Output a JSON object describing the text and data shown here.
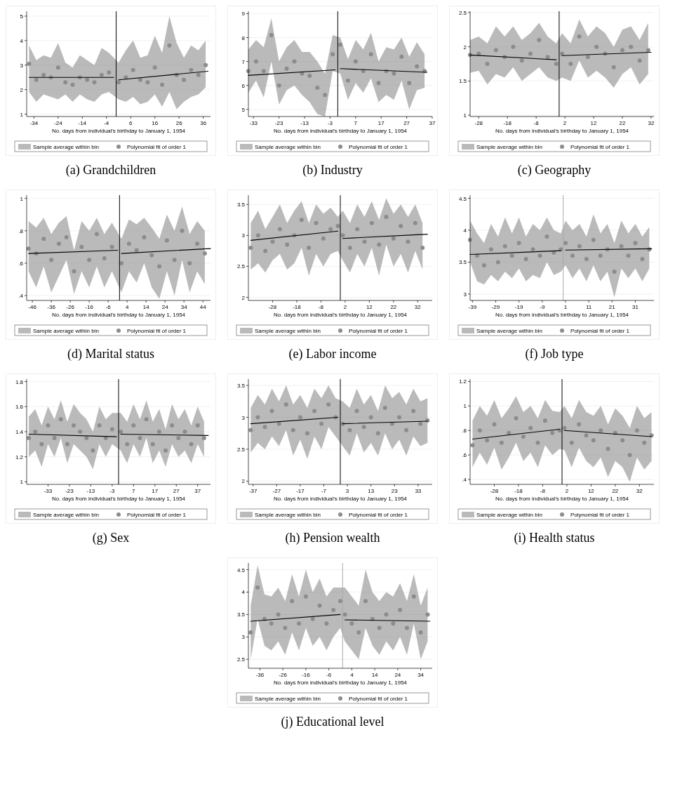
{
  "chart_data": [
    {
      "type": "scatter",
      "title": "(a) Grandchildren",
      "xlabel": "No. days from individual's birthday to January 1, 1954",
      "annotations": [
        "Sample average within bin"
      ],
      "xlim": [
        -37,
        39
      ],
      "xticks": [
        -34,
        -24,
        -14,
        -4,
        6,
        16,
        26,
        36
      ],
      "ylim": [
        0.9,
        5.2
      ],
      "yticks": [
        1,
        2,
        3,
        4,
        5
      ],
      "grid": "y",
      "legend": "bottom",
      "ref_lines": [
        {
          "axis": "x",
          "value": 0,
          "color": "#000000"
        }
      ],
      "x": [
        -36,
        -33,
        -30,
        -27,
        -24,
        -21,
        -18,
        -15,
        -12,
        -9,
        -6,
        -3,
        1,
        4,
        7,
        10,
        13,
        16,
        19,
        22,
        25,
        28,
        31,
        34,
        37
      ],
      "series": [
        {
          "name": "Polynomial fit of order 1",
          "color": "#8c8c8c",
          "values": [
            3.05,
            2.4,
            2.6,
            2.5,
            2.9,
            2.3,
            2.2,
            2.5,
            2.4,
            2.3,
            2.6,
            2.7,
            2.3,
            2.5,
            2.8,
            2.4,
            2.3,
            2.9,
            2.2,
            3.8,
            2.6,
            2.4,
            2.8,
            2.6,
            3.0
          ],
          "upper": [
            3.8,
            3.2,
            3.4,
            3.3,
            3.9,
            3.1,
            2.9,
            3.4,
            3.2,
            3.0,
            3.7,
            3.5,
            3.1,
            3.6,
            4.0,
            3.3,
            3.4,
            4.2,
            3.5,
            5.0,
            3.9,
            3.3,
            3.8,
            3.6,
            4.0
          ],
          "lower": [
            1.9,
            1.5,
            1.8,
            1.7,
            1.6,
            1.8,
            1.5,
            1.8,
            1.6,
            1.5,
            1.8,
            1.9,
            1.6,
            1.5,
            1.7,
            1.4,
            1.5,
            1.8,
            1.3,
            1.9,
            1.2,
            1.5,
            1.7,
            1.8,
            2.1
          ]
        },
        {
          "type": "line",
          "color": "#000000",
          "x": [
            -36,
            -1
          ],
          "values": [
            2.5,
            2.5
          ]
        },
        {
          "type": "line",
          "color": "#000000",
          "x": [
            1,
            38
          ],
          "values": [
            2.4,
            2.75
          ]
        }
      ]
    },
    {
      "type": "scatter",
      "title": "(b) Industry",
      "xlabel": "No. days from individual's birthday to January 1, 1954",
      "annotations": [
        "Sample average within bin"
      ],
      "xlim": [
        -35,
        37
      ],
      "xticks": [
        -33,
        -23,
        -13,
        -3,
        7,
        17,
        27,
        37
      ],
      "ylim": [
        4.7,
        9.1
      ],
      "yticks": [
        5,
        6,
        7,
        8,
        9
      ],
      "grid": "y",
      "legend": "bottom",
      "ref_lines": [
        {
          "axis": "x",
          "value": 0,
          "color": "#000000"
        }
      ],
      "x": [
        -35,
        -32,
        -29,
        -26,
        -23,
        -20,
        -17,
        -14,
        -11,
        -8,
        -5,
        -2,
        1,
        4,
        7,
        10,
        13,
        16,
        19,
        22,
        25,
        28,
        31,
        34
      ],
      "series": [
        {
          "name": "Polynomial fit of order 1",
          "color": "#8c8c8c",
          "values": [
            6.6,
            7.0,
            6.6,
            8.1,
            6.0,
            6.7,
            7.0,
            6.5,
            6.4,
            5.9,
            5.6,
            7.3,
            7.7,
            6.2,
            7.0,
            6.6,
            7.3,
            6.1,
            6.6,
            6.5,
            7.2,
            6.1,
            6.8,
            6.6
          ],
          "upper": [
            7.5,
            7.9,
            7.6,
            8.8,
            7.0,
            7.6,
            7.9,
            7.4,
            7.4,
            7.0,
            6.5,
            8.1,
            8.0,
            7.1,
            7.9,
            7.5,
            8.2,
            7.0,
            7.6,
            7.5,
            8.0,
            7.2,
            7.8,
            7.3
          ],
          "lower": [
            5.7,
            6.2,
            5.5,
            7.0,
            5.2,
            5.8,
            6.0,
            5.6,
            5.3,
            4.8,
            4.7,
            6.6,
            6.5,
            5.4,
            6.1,
            5.7,
            6.3,
            5.3,
            5.6,
            5.4,
            6.2,
            5.0,
            5.8,
            5.9
          ]
        },
        {
          "type": "line",
          "color": "#000000",
          "x": [
            -35,
            -1
          ],
          "values": [
            6.42,
            6.65
          ]
        },
        {
          "type": "line",
          "color": "#000000",
          "x": [
            1,
            35
          ],
          "values": [
            6.7,
            6.55
          ]
        }
      ]
    },
    {
      "type": "scatter",
      "title": "(c) Geography",
      "xlabel": "No. days from individual's birthday to January 1, 1954",
      "annotations": [
        "Sample average within bin"
      ],
      "xlim": [
        -31,
        33
      ],
      "xticks": [
        -28,
        -18,
        -8,
        2,
        12,
        22,
        32
      ],
      "ylim": [
        0.98,
        2.52
      ],
      "yticks": [
        1,
        1.5,
        2,
        2.5
      ],
      "grid": "y",
      "legend": "bottom",
      "ref_lines": [
        {
          "axis": "x",
          "value": 0,
          "color": "#000000"
        }
      ],
      "x": [
        -31,
        -28,
        -25,
        -22,
        -19,
        -16,
        -13,
        -10,
        -7,
        -4,
        -1,
        1,
        4,
        7,
        10,
        13,
        16,
        19,
        22,
        25,
        28,
        31
      ],
      "series": [
        {
          "name": "Polynomial fit of order 1",
          "color": "#8c8c8c",
          "values": [
            1.88,
            1.9,
            1.75,
            1.95,
            1.85,
            2.0,
            1.8,
            1.9,
            2.1,
            1.85,
            1.75,
            1.9,
            1.75,
            2.15,
            1.85,
            2.0,
            1.9,
            1.7,
            1.95,
            2.0,
            1.8,
            1.95
          ],
          "upper": [
            2.1,
            2.15,
            2.05,
            2.3,
            2.15,
            2.3,
            2.1,
            2.2,
            2.35,
            2.15,
            2.05,
            2.2,
            2.05,
            2.4,
            2.15,
            2.3,
            2.2,
            2.0,
            2.25,
            2.3,
            2.1,
            2.35
          ],
          "lower": [
            1.62,
            1.65,
            1.45,
            1.6,
            1.55,
            1.7,
            1.5,
            1.6,
            1.7,
            1.55,
            1.5,
            1.55,
            1.5,
            1.8,
            1.55,
            1.65,
            1.55,
            1.4,
            1.6,
            1.7,
            1.45,
            1.6
          ]
        },
        {
          "type": "line",
          "color": "#000000",
          "x": [
            -31,
            -1
          ],
          "values": [
            1.88,
            1.81
          ]
        },
        {
          "type": "line",
          "color": "#000000",
          "x": [
            1,
            32
          ],
          "values": [
            1.87,
            1.92
          ]
        }
      ]
    },
    {
      "type": "scatter",
      "title": "(d) Marital status",
      "xlabel": "No. days from individual's birthday to January 1, 1954",
      "annotations": [
        "Sample average within bin"
      ],
      "xlim": [
        -49,
        48
      ],
      "xticks": [
        -46,
        -36,
        -26,
        -16,
        -6,
        4,
        14,
        24,
        34,
        44
      ],
      "ylim": [
        0.37,
        1.02
      ],
      "yticks": [
        {
          "value": 0.4,
          "label": ".4"
        },
        {
          "value": 0.6,
          "label": ".6"
        },
        {
          "value": 0.8,
          "label": ".8"
        },
        1
      ],
      "grid": "y",
      "legend": "bottom",
      "ref_lines": [
        {
          "axis": "x",
          "value": 0,
          "color": "#000000"
        }
      ],
      "x": [
        -48,
        -44,
        -40,
        -36,
        -32,
        -28,
        -24,
        -20,
        -16,
        -12,
        -8,
        -4,
        1,
        5,
        9,
        13,
        17,
        21,
        25,
        29,
        33,
        37,
        41,
        45
      ],
      "series": [
        {
          "name": "Polynomial fit of order 1",
          "color": "#8c8c8c",
          "values": [
            0.69,
            0.66,
            0.75,
            0.62,
            0.72,
            0.76,
            0.55,
            0.7,
            0.62,
            0.78,
            0.63,
            0.7,
            0.6,
            0.72,
            0.68,
            0.76,
            0.65,
            0.58,
            0.74,
            0.62,
            0.8,
            0.6,
            0.72,
            0.66
          ],
          "upper": [
            0.86,
            0.82,
            0.88,
            0.78,
            0.85,
            0.89,
            0.68,
            0.86,
            0.8,
            0.88,
            0.78,
            0.85,
            0.75,
            0.87,
            0.84,
            0.88,
            0.82,
            0.75,
            0.9,
            0.8,
            0.95,
            0.78,
            0.86,
            0.8
          ],
          "lower": [
            0.55,
            0.45,
            0.58,
            0.42,
            0.52,
            0.62,
            0.41,
            0.55,
            0.45,
            0.58,
            0.45,
            0.55,
            0.42,
            0.55,
            0.48,
            0.6,
            0.45,
            0.38,
            0.55,
            0.4,
            0.62,
            0.42,
            0.55,
            0.47
          ]
        },
        {
          "type": "line",
          "color": "#000000",
          "x": [
            -48,
            -1
          ],
          "values": [
            0.66,
            0.68
          ]
        },
        {
          "type": "line",
          "color": "#000000",
          "x": [
            1,
            48
          ],
          "values": [
            0.66,
            0.69
          ]
        }
      ]
    },
    {
      "type": "scatter",
      "title": "(e) Labor income",
      "xlabel": "No. days from individual's birthday to January 1, 1954",
      "annotations": [
        "Sample average within bin"
      ],
      "xlim": [
        -38,
        38
      ],
      "xticks": [
        -28,
        -18,
        -8,
        2,
        12,
        22,
        32
      ],
      "ylim": [
        1.95,
        3.65
      ],
      "yticks": [
        2,
        2.5,
        3,
        3.5
      ],
      "grid": "y",
      "legend": "bottom",
      "ref_lines": [
        {
          "axis": "x",
          "value": 0,
          "color": "#000000"
        }
      ],
      "x": [
        -37,
        -34,
        -31,
        -28,
        -25,
        -22,
        -19,
        -16,
        -13,
        -10,
        -7,
        -4,
        -1,
        1,
        4,
        7,
        10,
        13,
        16,
        19,
        22,
        25,
        28,
        31,
        34
      ],
      "series": [
        {
          "name": "Polynomial fit of order 1",
          "color": "#8c8c8c",
          "values": [
            2.8,
            3.0,
            2.75,
            2.9,
            3.1,
            2.85,
            3.0,
            3.25,
            2.8,
            3.2,
            2.95,
            3.1,
            3.15,
            3.0,
            2.8,
            3.1,
            2.9,
            3.2,
            2.85,
            3.3,
            2.95,
            3.15,
            2.9,
            3.2,
            2.8
          ],
          "upper": [
            3.2,
            3.4,
            3.1,
            3.3,
            3.5,
            3.2,
            3.4,
            3.55,
            3.2,
            3.5,
            3.35,
            3.45,
            3.3,
            3.4,
            3.2,
            3.5,
            3.3,
            3.55,
            3.25,
            3.6,
            3.35,
            3.5,
            3.3,
            3.5,
            3.2
          ],
          "lower": [
            2.45,
            2.55,
            2.4,
            2.6,
            2.7,
            2.45,
            2.55,
            2.8,
            2.35,
            2.7,
            2.5,
            2.7,
            2.75,
            2.6,
            2.4,
            2.7,
            2.5,
            2.8,
            2.35,
            2.85,
            2.5,
            2.7,
            2.4,
            2.75,
            2.45
          ]
        },
        {
          "type": "line",
          "color": "#000000",
          "x": [
            -37,
            -1
          ],
          "values": [
            2.92,
            3.07
          ]
        },
        {
          "type": "line",
          "color": "#000000",
          "x": [
            1,
            36
          ],
          "values": [
            2.95,
            3.02
          ]
        }
      ]
    },
    {
      "type": "scatter",
      "title": "(f) Job type",
      "xlabel": "No. days from individual's birthday to January 1, 1954",
      "annotations": [
        "Sample average within bin"
      ],
      "xlim": [
        -40,
        39
      ],
      "xticks": [
        -39,
        -29,
        -19,
        -9,
        1,
        11,
        21,
        31
      ],
      "ylim": [
        2.9,
        4.55
      ],
      "yticks": [
        3,
        3.5,
        4,
        4.5
      ],
      "grid": "y",
      "legend": "bottom",
      "ref_lines": [
        {
          "axis": "x",
          "value": 0,
          "color": "#aaaaaa"
        }
      ],
      "x": [
        -40,
        -37,
        -34,
        -31,
        -28,
        -25,
        -22,
        -19,
        -16,
        -13,
        -10,
        -7,
        -4,
        -1,
        1,
        4,
        7,
        10,
        13,
        16,
        19,
        22,
        25,
        28,
        31,
        34,
        37
      ],
      "series": [
        {
          "name": "Polynomial fit of order 1",
          "color": "#8c8c8c",
          "values": [
            3.85,
            3.6,
            3.45,
            3.7,
            3.5,
            3.75,
            3.6,
            3.8,
            3.55,
            3.7,
            3.6,
            3.9,
            3.65,
            3.7,
            3.8,
            3.6,
            3.75,
            3.55,
            3.85,
            3.6,
            3.7,
            3.35,
            3.75,
            3.6,
            3.8,
            3.55,
            3.7
          ],
          "upper": [
            4.15,
            3.95,
            3.8,
            4.1,
            3.9,
            4.2,
            3.95,
            4.2,
            3.9,
            4.1,
            4.0,
            4.2,
            4.0,
            3.95,
            4.15,
            4.0,
            4.1,
            3.9,
            4.25,
            3.95,
            4.1,
            3.8,
            4.15,
            3.95,
            4.1,
            3.9,
            4.05
          ],
          "lower": [
            3.5,
            3.2,
            3.15,
            3.3,
            3.2,
            3.35,
            3.25,
            3.4,
            3.2,
            3.3,
            3.25,
            3.5,
            3.3,
            3.35,
            3.45,
            3.25,
            3.4,
            3.2,
            3.45,
            3.2,
            3.35,
            2.95,
            3.4,
            3.25,
            3.4,
            3.2,
            3.4
          ]
        },
        {
          "type": "line",
          "color": "#000000",
          "x": [
            -40,
            -1
          ],
          "values": [
            3.62,
            3.68
          ]
        },
        {
          "type": "line",
          "color": "#000000",
          "x": [
            1,
            38
          ],
          "values": [
            3.69,
            3.71
          ]
        }
      ]
    },
    {
      "type": "scatter",
      "title": "(g) Sex",
      "xlabel": "No. days from individual's birthday to January 1, 1954",
      "annotations": [
        "Sample average within bin"
      ],
      "xlim": [
        -43,
        43
      ],
      "xticks": [
        -33,
        -23,
        -13,
        -3,
        7,
        17,
        27,
        37
      ],
      "ylim": [
        0.98,
        1.82
      ],
      "yticks": [
        1,
        1.2,
        1.4,
        1.6,
        1.8
      ],
      "grid": "y",
      "legend": "bottom",
      "ref_lines": [
        {
          "axis": "x",
          "value": 0,
          "color": "#000000"
        }
      ],
      "x": [
        -42,
        -39,
        -36,
        -33,
        -30,
        -27,
        -24,
        -21,
        -18,
        -15,
        -12,
        -9,
        -6,
        -3,
        1,
        4,
        7,
        10,
        13,
        16,
        19,
        22,
        25,
        28,
        31,
        34,
        37,
        40
      ],
      "series": [
        {
          "name": "Polynomial fit of order 1",
          "color": "#8c8c8c",
          "values": [
            1.35,
            1.4,
            1.3,
            1.45,
            1.35,
            1.5,
            1.3,
            1.45,
            1.4,
            1.35,
            1.25,
            1.45,
            1.35,
            1.42,
            1.4,
            1.3,
            1.45,
            1.35,
            1.5,
            1.3,
            1.4,
            1.25,
            1.45,
            1.35,
            1.4,
            1.3,
            1.45,
            1.35
          ],
          "upper": [
            1.52,
            1.58,
            1.45,
            1.6,
            1.5,
            1.65,
            1.48,
            1.62,
            1.55,
            1.5,
            1.4,
            1.6,
            1.5,
            1.55,
            1.55,
            1.48,
            1.62,
            1.5,
            1.65,
            1.48,
            1.58,
            1.42,
            1.62,
            1.5,
            1.58,
            1.45,
            1.6,
            1.48
          ],
          "lower": [
            1.2,
            1.25,
            1.12,
            1.3,
            1.2,
            1.35,
            1.15,
            1.3,
            1.25,
            1.2,
            1.1,
            1.3,
            1.2,
            1.3,
            1.25,
            1.15,
            1.3,
            1.2,
            1.35,
            1.15,
            1.25,
            1.12,
            1.3,
            1.2,
            1.25,
            1.15,
            1.3,
            1.2
          ]
        },
        {
          "type": "line",
          "color": "#000000",
          "x": [
            -42,
            -1
          ],
          "values": [
            1.38,
            1.36
          ]
        },
        {
          "type": "line",
          "color": "#000000",
          "x": [
            1,
            42
          ],
          "values": [
            1.38,
            1.37
          ]
        }
      ]
    },
    {
      "type": "scatter",
      "title": "(h) Pension wealth",
      "xlabel": "No. days from individual's birthday to January 1, 1954",
      "annotations": [
        "Sample average within bin"
      ],
      "xlim": [
        -39,
        39
      ],
      "xticks": [
        -37,
        -27,
        -17,
        -7,
        3,
        13,
        23,
        33
      ],
      "ylim": [
        1.95,
        3.6
      ],
      "yticks": [
        2,
        2.5,
        3,
        3.5
      ],
      "grid": "y",
      "legend": "bottom",
      "ref_lines": [
        {
          "axis": "x",
          "value": 0,
          "color": "#000000"
        }
      ],
      "x": [
        -38,
        -35,
        -32,
        -29,
        -26,
        -23,
        -20,
        -17,
        -14,
        -11,
        -8,
        -5,
        -2,
        1,
        4,
        7,
        10,
        13,
        16,
        19,
        22,
        25,
        28,
        31,
        34,
        37
      ],
      "series": [
        {
          "name": "Polynomial fit of order 1",
          "color": "#8c8c8c",
          "values": [
            2.8,
            3.0,
            2.85,
            3.1,
            2.9,
            3.2,
            2.8,
            3.0,
            2.75,
            3.1,
            2.9,
            3.2,
            3.0,
            2.9,
            2.8,
            3.1,
            2.85,
            3.0,
            2.75,
            3.15,
            2.9,
            3.0,
            2.8,
            3.1,
            2.9,
            2.95
          ],
          "upper": [
            3.15,
            3.35,
            3.2,
            3.45,
            3.25,
            3.5,
            3.2,
            3.35,
            3.15,
            3.45,
            3.3,
            3.5,
            3.3,
            3.25,
            3.15,
            3.45,
            3.2,
            3.35,
            3.1,
            3.5,
            3.3,
            3.4,
            3.2,
            3.45,
            3.25,
            3.3
          ],
          "lower": [
            2.45,
            2.6,
            2.5,
            2.7,
            2.55,
            2.8,
            2.4,
            2.65,
            2.35,
            2.7,
            2.5,
            2.85,
            2.7,
            2.55,
            2.4,
            2.75,
            2.45,
            2.6,
            2.4,
            2.75,
            2.5,
            2.65,
            2.4,
            2.7,
            2.55,
            2.6
          ]
        },
        {
          "type": "line",
          "color": "#000000",
          "x": [
            -38,
            -1
          ],
          "values": [
            2.9,
            3.0
          ]
        },
        {
          "type": "line",
          "color": "#000000",
          "x": [
            1,
            37
          ],
          "values": [
            2.9,
            2.94
          ]
        }
      ]
    },
    {
      "type": "scatter",
      "title": "(i) Health status",
      "xlabel": "No. days from individual's birthday to January 1, 1954",
      "annotations": [
        "Sample average within bin"
      ],
      "xlim": [
        -38,
        38
      ],
      "xticks": [
        -28,
        -18,
        -8,
        2,
        12,
        22,
        32
      ],
      "ylim": [
        0.36,
        1.22
      ],
      "yticks": [
        {
          "value": 0.4,
          "label": ".4"
        },
        {
          "value": 0.6,
          "label": ".6"
        },
        {
          "value": 0.8,
          "label": ".8"
        },
        1,
        1.2
      ],
      "grid": "y",
      "legend": "bottom",
      "ref_lines": [
        {
          "axis": "x",
          "value": 0,
          "color": "#000000"
        }
      ],
      "x": [
        -37,
        -34,
        -31,
        -28,
        -25,
        -22,
        -19,
        -16,
        -13,
        -10,
        -7,
        -4,
        -1,
        1,
        4,
        7,
        10,
        13,
        16,
        19,
        22,
        25,
        28,
        31,
        34,
        37
      ],
      "series": [
        {
          "name": "Polynomial fit of order 1",
          "color": "#8c8c8c",
          "values": [
            0.68,
            0.8,
            0.72,
            0.85,
            0.7,
            0.78,
            0.9,
            0.75,
            0.82,
            0.7,
            0.88,
            0.78,
            0.8,
            0.82,
            0.7,
            0.85,
            0.76,
            0.72,
            0.8,
            0.65,
            0.78,
            0.72,
            0.6,
            0.8,
            0.7,
            0.76
          ],
          "upper": [
            0.88,
            1.0,
            0.92,
            1.05,
            0.9,
            0.98,
            1.08,
            0.95,
            1.0,
            0.9,
            1.05,
            0.96,
            0.95,
            1.0,
            0.9,
            1.05,
            0.95,
            0.92,
            1.0,
            0.85,
            0.98,
            0.92,
            0.82,
            1.0,
            0.9,
            0.95
          ],
          "lower": [
            0.5,
            0.62,
            0.52,
            0.66,
            0.48,
            0.58,
            0.7,
            0.55,
            0.62,
            0.5,
            0.68,
            0.6,
            0.65,
            0.64,
            0.5,
            0.66,
            0.55,
            0.5,
            0.58,
            0.42,
            0.55,
            0.5,
            0.38,
            0.58,
            0.48,
            0.55
          ]
        },
        {
          "type": "line",
          "color": "#000000",
          "x": [
            -37,
            -1
          ],
          "values": [
            0.73,
            0.81
          ]
        },
        {
          "type": "line",
          "color": "#000000",
          "x": [
            1,
            37
          ],
          "values": [
            0.8,
            0.75
          ]
        }
      ]
    },
    {
      "type": "scatter",
      "title": "(j) Educational level",
      "xlabel": "No. days from individual's birthday to January 1, 1954",
      "annotations": [
        "Sample average within bin"
      ],
      "xlim": [
        -41,
        39
      ],
      "xticks": [
        -36,
        -26,
        -16,
        -6,
        4,
        14,
        24,
        34
      ],
      "ylim": [
        2.3,
        4.65
      ],
      "yticks": [
        2.5,
        3,
        3.5,
        4,
        4.5
      ],
      "grid": "y",
      "legend": "bottom",
      "ref_lines": [
        {
          "axis": "x",
          "value": 0,
          "color": "#aaaaaa"
        }
      ],
      "x": [
        -40,
        -37,
        -34,
        -31,
        -28,
        -25,
        -22,
        -19,
        -16,
        -13,
        -10,
        -7,
        -4,
        -1,
        1,
        4,
        7,
        10,
        13,
        16,
        19,
        22,
        25,
        28,
        31,
        34,
        37
      ],
      "series": [
        {
          "name": "Polynomial fit of order 1",
          "color": "#8c8c8c",
          "values": [
            3.1,
            4.1,
            3.4,
            3.3,
            3.5,
            3.2,
            3.8,
            3.3,
            3.9,
            3.4,
            3.7,
            3.3,
            3.6,
            3.8,
            3.5,
            3.3,
            3.1,
            3.8,
            3.4,
            3.2,
            3.5,
            3.3,
            3.6,
            3.2,
            3.9,
            3.1,
            3.5
          ],
          "upper": [
            3.7,
            4.6,
            3.95,
            3.9,
            4.1,
            3.8,
            4.4,
            3.9,
            4.5,
            4.0,
            4.3,
            3.9,
            4.1,
            4.1,
            4.1,
            3.9,
            3.7,
            4.5,
            4.0,
            3.8,
            4.0,
            3.9,
            4.2,
            3.8,
            4.4,
            3.7,
            4.1
          ],
          "lower": [
            2.5,
            3.4,
            2.8,
            2.7,
            2.9,
            2.6,
            3.1,
            2.7,
            3.2,
            2.8,
            3.0,
            2.7,
            3.0,
            3.2,
            2.9,
            2.7,
            2.5,
            3.2,
            2.8,
            2.6,
            2.9,
            2.7,
            3.0,
            2.6,
            3.3,
            2.5,
            2.9
          ]
        },
        {
          "type": "line",
          "color": "#000000",
          "x": [
            -40,
            -1
          ],
          "values": [
            3.35,
            3.5
          ]
        },
        {
          "type": "line",
          "color": "#000000",
          "x": [
            1,
            38
          ],
          "values": [
            3.38,
            3.35
          ]
        }
      ]
    }
  ]
}
